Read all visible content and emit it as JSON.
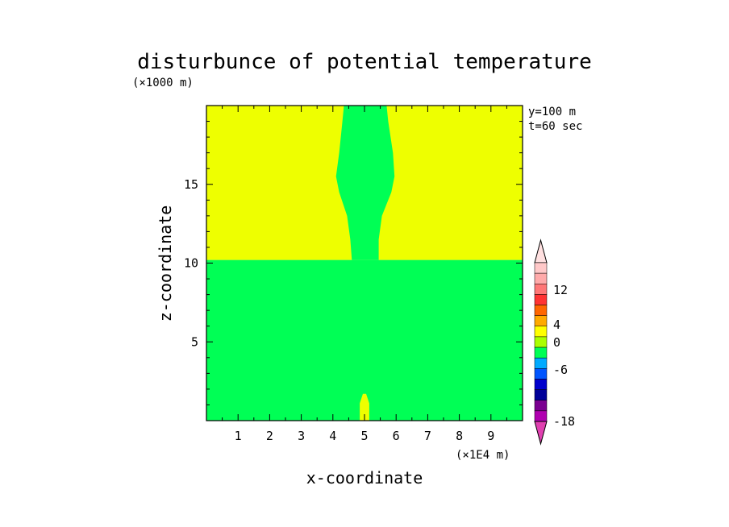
{
  "title": "disturbunce of potential temperature",
  "y_unit": "(×1000 m)",
  "x_unit": "(×1E4 m)",
  "info": [
    "y=100 m",
    "t=60 sec"
  ],
  "colors": {
    "background_pos": "#eeff00",
    "background_neg": "#00ff55",
    "axis": "#000000"
  },
  "chart_data": {
    "type": "heatmap",
    "xlabel": "x-coordinate",
    "ylabel": "z-coordinate",
    "xlim": [
      0,
      10
    ],
    "ylim": [
      0,
      20
    ],
    "x_ticks": [
      1,
      2,
      3,
      4,
      5,
      6,
      7,
      8,
      9
    ],
    "y_ticks": [
      5,
      10,
      15
    ],
    "regions": [
      {
        "name": "lower layer",
        "z_range": [
          0,
          10.2
        ],
        "color": "#00ff55"
      },
      {
        "name": "upper layer",
        "z_range": [
          10.2,
          20
        ],
        "color": "#eeff00"
      },
      {
        "name": "upper plume",
        "color": "#00ff55",
        "boundary": [
          [
            4.6,
            10.2
          ],
          [
            4.55,
            11.5
          ],
          [
            4.45,
            13
          ],
          [
            4.2,
            14.5
          ],
          [
            4.1,
            15.5
          ],
          [
            4.2,
            17
          ],
          [
            4.3,
            19
          ],
          [
            4.35,
            20
          ],
          [
            5.7,
            20
          ],
          [
            5.75,
            19
          ],
          [
            5.9,
            17
          ],
          [
            5.95,
            15.5
          ],
          [
            5.85,
            14.5
          ],
          [
            5.55,
            13
          ],
          [
            5.45,
            11.5
          ],
          [
            5.45,
            10.2
          ]
        ]
      },
      {
        "name": "surface bubble",
        "color": "#eeff00",
        "boundary": [
          [
            4.85,
            0
          ],
          [
            4.85,
            1.1
          ],
          [
            4.95,
            1.7
          ],
          [
            5.05,
            1.7
          ],
          [
            5.15,
            1.1
          ],
          [
            5.15,
            0
          ]
        ]
      }
    ],
    "colorbar": {
      "levels": [
        -18,
        -15,
        -12,
        -9,
        -6,
        -3,
        -1,
        0,
        1,
        2,
        3,
        4,
        6,
        9,
        12,
        15
      ],
      "labels": [
        12,
        4,
        0,
        -6,
        -18
      ],
      "colors": [
        "#e040b0",
        "#b000b0",
        "#7a0090",
        "#000099",
        "#0000cc",
        "#0055ff",
        "#00aaff",
        "#00ff55",
        "#aaff00",
        "#ffff00",
        "#ffaa00",
        "#ff6600",
        "#ff3333",
        "#ff7777",
        "#ffaaaa",
        "#ffc8c8",
        "#ffe0e0"
      ]
    }
  }
}
